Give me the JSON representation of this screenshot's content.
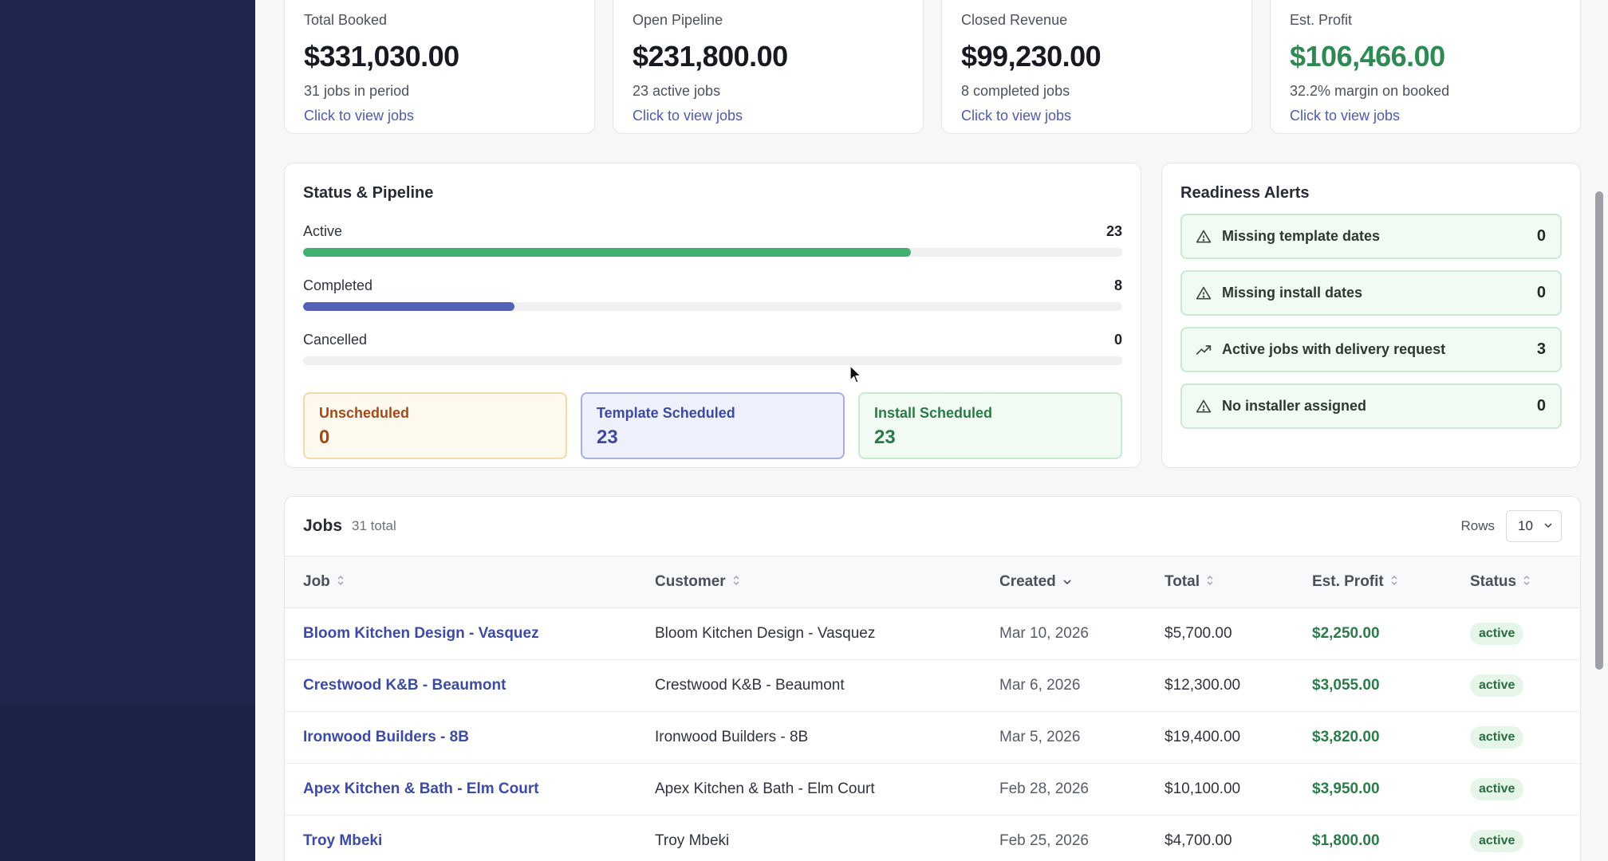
{
  "kpis": [
    {
      "label": "Total Booked",
      "value": "$331,030.00",
      "sub": "31 jobs in period",
      "link": "Click to view jobs"
    },
    {
      "label": "Open Pipeline",
      "value": "$231,800.00",
      "sub": "23 active jobs",
      "link": "Click to view jobs"
    },
    {
      "label": "Closed Revenue",
      "value": "$99,230.00",
      "sub": "8 completed jobs",
      "link": "Click to view jobs"
    },
    {
      "label": "Est. Profit",
      "value": "$106,466.00",
      "sub": "32.2% margin on booked",
      "link": "Click to view jobs"
    }
  ],
  "pipeline": {
    "title": "Status & Pipeline",
    "bars": [
      {
        "label": "Active",
        "count": "23",
        "fraction": 0.742,
        "color": "#3fb06f"
      },
      {
        "label": "Completed",
        "count": "8",
        "fraction": 0.258,
        "color": "#5561b8"
      },
      {
        "label": "Cancelled",
        "count": "0",
        "fraction": 0,
        "color": "#9aa0aa"
      }
    ],
    "scheduling": [
      {
        "label": "Unscheduled",
        "value": "0"
      },
      {
        "label": "Template Scheduled",
        "value": "23"
      },
      {
        "label": "Install Scheduled",
        "value": "23"
      }
    ]
  },
  "alerts": {
    "title": "Readiness Alerts",
    "items": [
      {
        "icon": "warning-triangle-icon",
        "label": "Missing template dates",
        "count": "0"
      },
      {
        "icon": "warning-triangle-icon",
        "label": "Missing install dates",
        "count": "0"
      },
      {
        "icon": "trending-up-icon",
        "label": "Active jobs with delivery request",
        "count": "3"
      },
      {
        "icon": "warning-triangle-icon",
        "label": "No installer assigned",
        "count": "0"
      }
    ]
  },
  "jobs": {
    "title": "Jobs",
    "total": "31 total",
    "rows_label": "Rows",
    "rows_value": "10",
    "columns": {
      "job": "Job",
      "customer": "Customer",
      "created": "Created",
      "total": "Total",
      "profit": "Est. Profit",
      "status": "Status"
    },
    "rows": [
      {
        "job": "Bloom Kitchen Design - Vasquez",
        "customer": "Bloom Kitchen Design - Vasquez",
        "created": "Mar 10, 2026",
        "total": "$5,700.00",
        "profit": "$2,250.00",
        "status": "active"
      },
      {
        "job": "Crestwood K&B - Beaumont",
        "customer": "Crestwood K&B - Beaumont",
        "created": "Mar 6, 2026",
        "total": "$12,300.00",
        "profit": "$3,055.00",
        "status": "active"
      },
      {
        "job": "Ironwood Builders - 8B",
        "customer": "Ironwood Builders - 8B",
        "created": "Mar 5, 2026",
        "total": "$19,400.00",
        "profit": "$3,820.00",
        "status": "active"
      },
      {
        "job": "Apex Kitchen & Bath - Elm Court",
        "customer": "Apex Kitchen & Bath - Elm Court",
        "created": "Feb 28, 2026",
        "total": "$10,100.00",
        "profit": "$3,950.00",
        "status": "active"
      },
      {
        "job": "Troy Mbeki",
        "customer": "Troy Mbeki",
        "created": "Feb 25, 2026",
        "total": "$4,700.00",
        "profit": "$1,800.00",
        "status": "active"
      }
    ]
  },
  "colors": {
    "sidebar": "#20264f",
    "accent": "#4e5bb0",
    "success": "#2e8a53"
  }
}
